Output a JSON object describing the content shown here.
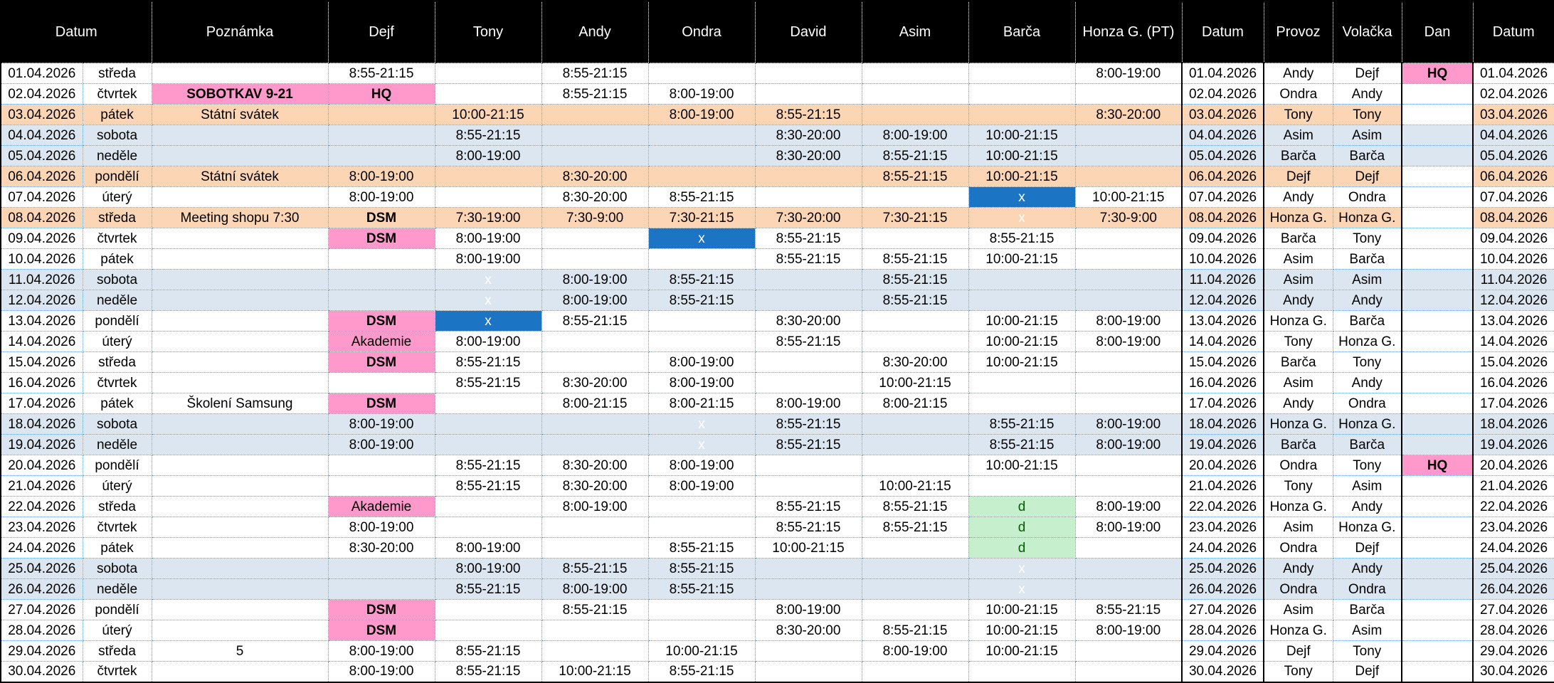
{
  "header": {
    "labels": [
      {
        "label": "Datum",
        "span": 2
      },
      {
        "label": "Poznámka",
        "span": 1
      },
      {
        "label": "Dejf",
        "span": 1
      },
      {
        "label": "Tony",
        "span": 1
      },
      {
        "label": "Andy",
        "span": 1
      },
      {
        "label": "Ondra",
        "span": 1
      },
      {
        "label": "David",
        "span": 1
      },
      {
        "label": "Asim",
        "span": 1
      },
      {
        "label": "Barča",
        "span": 1
      },
      {
        "label": "Honza G. (PT)",
        "span": 1
      },
      {
        "label": "Datum",
        "span": 1
      },
      {
        "label": "Provoz",
        "span": 1
      },
      {
        "label": "Volačka",
        "span": 1
      },
      {
        "label": "Dan",
        "span": 1
      },
      {
        "label": "Datum",
        "span": 1
      }
    ],
    "people": [
      "Dejf",
      "Tony",
      "Andy",
      "Ondra",
      "David",
      "Asim",
      "Barča",
      "Honza G. (PT)"
    ]
  },
  "colors": {
    "header_bg": "#000000",
    "header_text": "#ffffff",
    "weekend_bg": "#dce6f1",
    "holiday_bg": "#fcd5b4",
    "highlight_pink": "#ff99cc",
    "absence_blue": "#1b74c4",
    "good_bg": "#c6efce",
    "good_text": "#006100",
    "gridline_blue": "#5b9bd5"
  },
  "rows": [
    {
      "date": "01.04.2026",
      "day": "středa",
      "type": "normal",
      "note": "",
      "shifts": [
        "8:55-21:15",
        "",
        "8:55-21:15",
        "",
        "",
        "",
        "",
        "8:00-19:00"
      ],
      "provoz": "Andy",
      "volacka": "Dejf",
      "dan": "HQ|pinkb"
    },
    {
      "date": "02.04.2026",
      "day": "čtvrtek",
      "type": "normal",
      "note": "SOBOTKAV 9-21|pinkb",
      "shifts": [
        "HQ|pinkb",
        "",
        "8:55-21:15",
        "8:00-19:00",
        "",
        "",
        "",
        ""
      ],
      "provoz": "Ondra",
      "volacka": "Andy",
      "dan": ""
    },
    {
      "date": "03.04.2026",
      "day": "pátek",
      "type": "holiday",
      "note": "Státní svátek",
      "shifts": [
        "",
        "10:00-21:15",
        "",
        "8:00-19:00",
        "8:55-21:15",
        "",
        "",
        "8:30-20:00"
      ],
      "provoz": "Tony",
      "volacka": "Tony",
      "dan": ""
    },
    {
      "date": "04.04.2026",
      "day": "sobota",
      "type": "weekend",
      "note": "",
      "shifts": [
        "",
        "8:55-21:15",
        "",
        "",
        "8:30-20:00",
        "8:00-19:00",
        "10:00-21:15",
        ""
      ],
      "provoz": "Asim",
      "volacka": "Asim",
      "dan": ""
    },
    {
      "date": "05.04.2026",
      "day": "neděle",
      "type": "weekend",
      "note": "",
      "shifts": [
        "",
        "8:00-19:00",
        "",
        "",
        "8:30-20:00",
        "8:55-21:15",
        "10:00-21:15",
        ""
      ],
      "provoz": "Barča",
      "volacka": "Barča",
      "dan": ""
    },
    {
      "date": "06.04.2026",
      "day": "pondělí",
      "type": "holiday",
      "note": "Státní svátek",
      "shifts": [
        "8:00-19:00",
        "",
        "8:30-20:00",
        "",
        "",
        "8:55-21:15",
        "10:00-21:15",
        ""
      ],
      "provoz": "Dejf",
      "volacka": "Dejf",
      "dan": ""
    },
    {
      "date": "07.04.2026",
      "day": "úterý",
      "type": "normal",
      "note": "",
      "shifts": [
        "8:00-19:00",
        "",
        "8:30-20:00",
        "8:55-21:15",
        "",
        "",
        "x|blue",
        "10:00-21:15"
      ],
      "provoz": "Andy",
      "volacka": "Ondra",
      "dan": ""
    },
    {
      "date": "08.04.2026",
      "day": "středa",
      "type": "holiday",
      "note": "Meeting shopu 7:30",
      "shifts": [
        "DSM|pinkb",
        "7:30-19:00",
        "7:30-9:00",
        "7:30-21:15",
        "7:30-20:00",
        "7:30-21:15",
        "x|blue",
        "7:30-9:00"
      ],
      "provoz": "Honza G.",
      "volacka": "Honza G.",
      "dan": ""
    },
    {
      "date": "09.04.2026",
      "day": "čtvrtek",
      "type": "normal",
      "note": "",
      "shifts": [
        "DSM|pinkb",
        "8:00-19:00",
        "",
        "x|blue",
        "8:55-21:15",
        "",
        "8:55-21:15",
        ""
      ],
      "provoz": "Barča",
      "volacka": "Tony",
      "dan": ""
    },
    {
      "date": "10.04.2026",
      "day": "pátek",
      "type": "normal",
      "note": "",
      "shifts": [
        "",
        "8:00-19:00",
        "",
        "",
        "8:55-21:15",
        "8:55-21:15",
        "10:00-21:15",
        ""
      ],
      "provoz": "Asim",
      "volacka": "Barča",
      "dan": ""
    },
    {
      "date": "11.04.2026",
      "day": "sobota",
      "type": "weekend",
      "note": "",
      "shifts": [
        "",
        "x|blue",
        "8:00-19:00",
        "8:55-21:15",
        "",
        "8:55-21:15",
        "",
        ""
      ],
      "provoz": "Asim",
      "volacka": "Asim",
      "dan": ""
    },
    {
      "date": "12.04.2026",
      "day": "neděle",
      "type": "weekend",
      "note": "",
      "shifts": [
        "",
        "x|blue",
        "8:00-19:00",
        "8:55-21:15",
        "",
        "8:55-21:15",
        "",
        ""
      ],
      "provoz": "Andy",
      "volacka": "Andy",
      "dan": ""
    },
    {
      "date": "13.04.2026",
      "day": "pondělí",
      "type": "normal",
      "note": "",
      "shifts": [
        "DSM|pinkb",
        "x|blue",
        "8:55-21:15",
        "",
        "8:30-20:00",
        "",
        "10:00-21:15",
        "8:00-19:00"
      ],
      "provoz": "Honza G.",
      "volacka": "Barča",
      "dan": ""
    },
    {
      "date": "14.04.2026",
      "day": "úterý",
      "type": "normal",
      "note": "",
      "shifts": [
        "Akademie|pink",
        "8:00-19:00",
        "",
        "",
        "8:55-21:15",
        "",
        "10:00-21:15",
        "8:00-19:00"
      ],
      "provoz": "Tony",
      "volacka": "Honza G.",
      "dan": ""
    },
    {
      "date": "15.04.2026",
      "day": "středa",
      "type": "normal",
      "note": "",
      "shifts": [
        "DSM|pinkb",
        "8:55-21:15",
        "",
        "8:00-19:00",
        "",
        "8:30-20:00",
        "10:00-21:15",
        ""
      ],
      "provoz": "Barča",
      "volacka": "Tony",
      "dan": ""
    },
    {
      "date": "16.04.2026",
      "day": "čtvrtek",
      "type": "normal",
      "note": "",
      "shifts": [
        "",
        "8:55-21:15",
        "8:30-20:00",
        "8:00-19:00",
        "",
        "10:00-21:15",
        "",
        ""
      ],
      "provoz": "Asim",
      "volacka": "Andy",
      "dan": ""
    },
    {
      "date": "17.04.2026",
      "day": "pátek",
      "type": "normal",
      "note": "Školení Samsung",
      "shifts": [
        "DSM|pinkb",
        "",
        "8:00-21:15",
        "8:00-21:15",
        "8:00-19:00",
        "8:00-21:15",
        "",
        ""
      ],
      "provoz": "Andy",
      "volacka": "Ondra",
      "dan": ""
    },
    {
      "date": "18.04.2026",
      "day": "sobota",
      "type": "weekend",
      "note": "",
      "shifts": [
        "8:00-19:00",
        "",
        "",
        "x|blue",
        "8:55-21:15",
        "",
        "8:55-21:15",
        "8:00-19:00"
      ],
      "provoz": "Honza G.",
      "volacka": "Honza G.",
      "dan": ""
    },
    {
      "date": "19.04.2026",
      "day": "neděle",
      "type": "weekend",
      "note": "",
      "shifts": [
        "8:00-19:00",
        "",
        "",
        "x|blue",
        "8:55-21:15",
        "",
        "8:55-21:15",
        "8:00-19:00"
      ],
      "provoz": "Barča",
      "volacka": "Barča",
      "dan": ""
    },
    {
      "date": "20.04.2026",
      "day": "pondělí",
      "type": "normal",
      "note": "",
      "shifts": [
        "",
        "8:55-21:15",
        "8:30-20:00",
        "8:00-19:00",
        "",
        "",
        "10:00-21:15",
        ""
      ],
      "provoz": "Ondra",
      "volacka": "Tony",
      "dan": "HQ|pinkb"
    },
    {
      "date": "21.04.2026",
      "day": "úterý",
      "type": "normal",
      "note": "",
      "shifts": [
        "",
        "8:55-21:15",
        "8:30-20:00",
        "8:00-19:00",
        "",
        "10:00-21:15",
        "",
        ""
      ],
      "provoz": "Tony",
      "volacka": "Asim",
      "dan": ""
    },
    {
      "date": "22.04.2026",
      "day": "středa",
      "type": "normal",
      "note": "",
      "shifts": [
        "Akademie|pink",
        "",
        "8:00-19:00",
        "",
        "8:55-21:15",
        "8:55-21:15",
        "d|good",
        "8:00-19:00"
      ],
      "provoz": "Honza G.",
      "volacka": "Andy",
      "dan": ""
    },
    {
      "date": "23.04.2026",
      "day": "čtvrtek",
      "type": "normal",
      "note": "",
      "shifts": [
        "8:00-19:00",
        "",
        "",
        "",
        "8:55-21:15",
        "8:55-21:15",
        "d|good",
        "8:00-19:00"
      ],
      "provoz": "Asim",
      "volacka": "Honza G.",
      "dan": ""
    },
    {
      "date": "24.04.2026",
      "day": "pátek",
      "type": "normal",
      "note": "",
      "shifts": [
        "8:30-20:00",
        "8:00-19:00",
        "",
        "8:55-21:15",
        "10:00-21:15",
        "",
        "d|good",
        ""
      ],
      "provoz": "Ondra",
      "volacka": "Dejf",
      "dan": ""
    },
    {
      "date": "25.04.2026",
      "day": "sobota",
      "type": "weekend",
      "note": "",
      "shifts": [
        "",
        "8:00-19:00",
        "8:55-21:15",
        "8:55-21:15",
        "",
        "",
        "x|blue",
        ""
      ],
      "provoz": "Andy",
      "volacka": "Andy",
      "dan": ""
    },
    {
      "date": "26.04.2026",
      "day": "neděle",
      "type": "weekend",
      "note": "",
      "shifts": [
        "",
        "8:55-21:15",
        "8:00-19:00",
        "8:55-21:15",
        "",
        "",
        "x|blue",
        ""
      ],
      "provoz": "Ondra",
      "volacka": "Ondra",
      "dan": ""
    },
    {
      "date": "27.04.2026",
      "day": "pondělí",
      "type": "normal",
      "note": "",
      "shifts": [
        "DSM|pinkb",
        "",
        "8:55-21:15",
        "",
        "8:00-19:00",
        "",
        "10:00-21:15",
        "8:55-21:15"
      ],
      "provoz": "Asim",
      "volacka": "Barča",
      "dan": ""
    },
    {
      "date": "28.04.2026",
      "day": "úterý",
      "type": "normal",
      "note": "",
      "shifts": [
        "DSM|pinkb",
        "",
        "",
        "",
        "8:30-20:00",
        "8:55-21:15",
        "10:00-21:15",
        "8:00-19:00"
      ],
      "provoz": "Honza G.",
      "volacka": "Asim",
      "dan": ""
    },
    {
      "date": "29.04.2026",
      "day": "středa",
      "type": "normal",
      "note": "5",
      "shifts": [
        "8:00-19:00",
        "8:55-21:15",
        "",
        "10:00-21:15",
        "",
        "8:00-19:00",
        "10:00-21:15",
        ""
      ],
      "provoz": "Dejf",
      "volacka": "Tony",
      "dan": ""
    },
    {
      "date": "30.04.2026",
      "day": "čtvrtek",
      "type": "normal",
      "note": "",
      "shifts": [
        "8:00-19:00",
        "8:55-21:15",
        "10:00-21:15",
        "8:55-21:15",
        "",
        "",
        "",
        ""
      ],
      "provoz": "Tony",
      "volacka": "Dejf",
      "dan": ""
    }
  ]
}
